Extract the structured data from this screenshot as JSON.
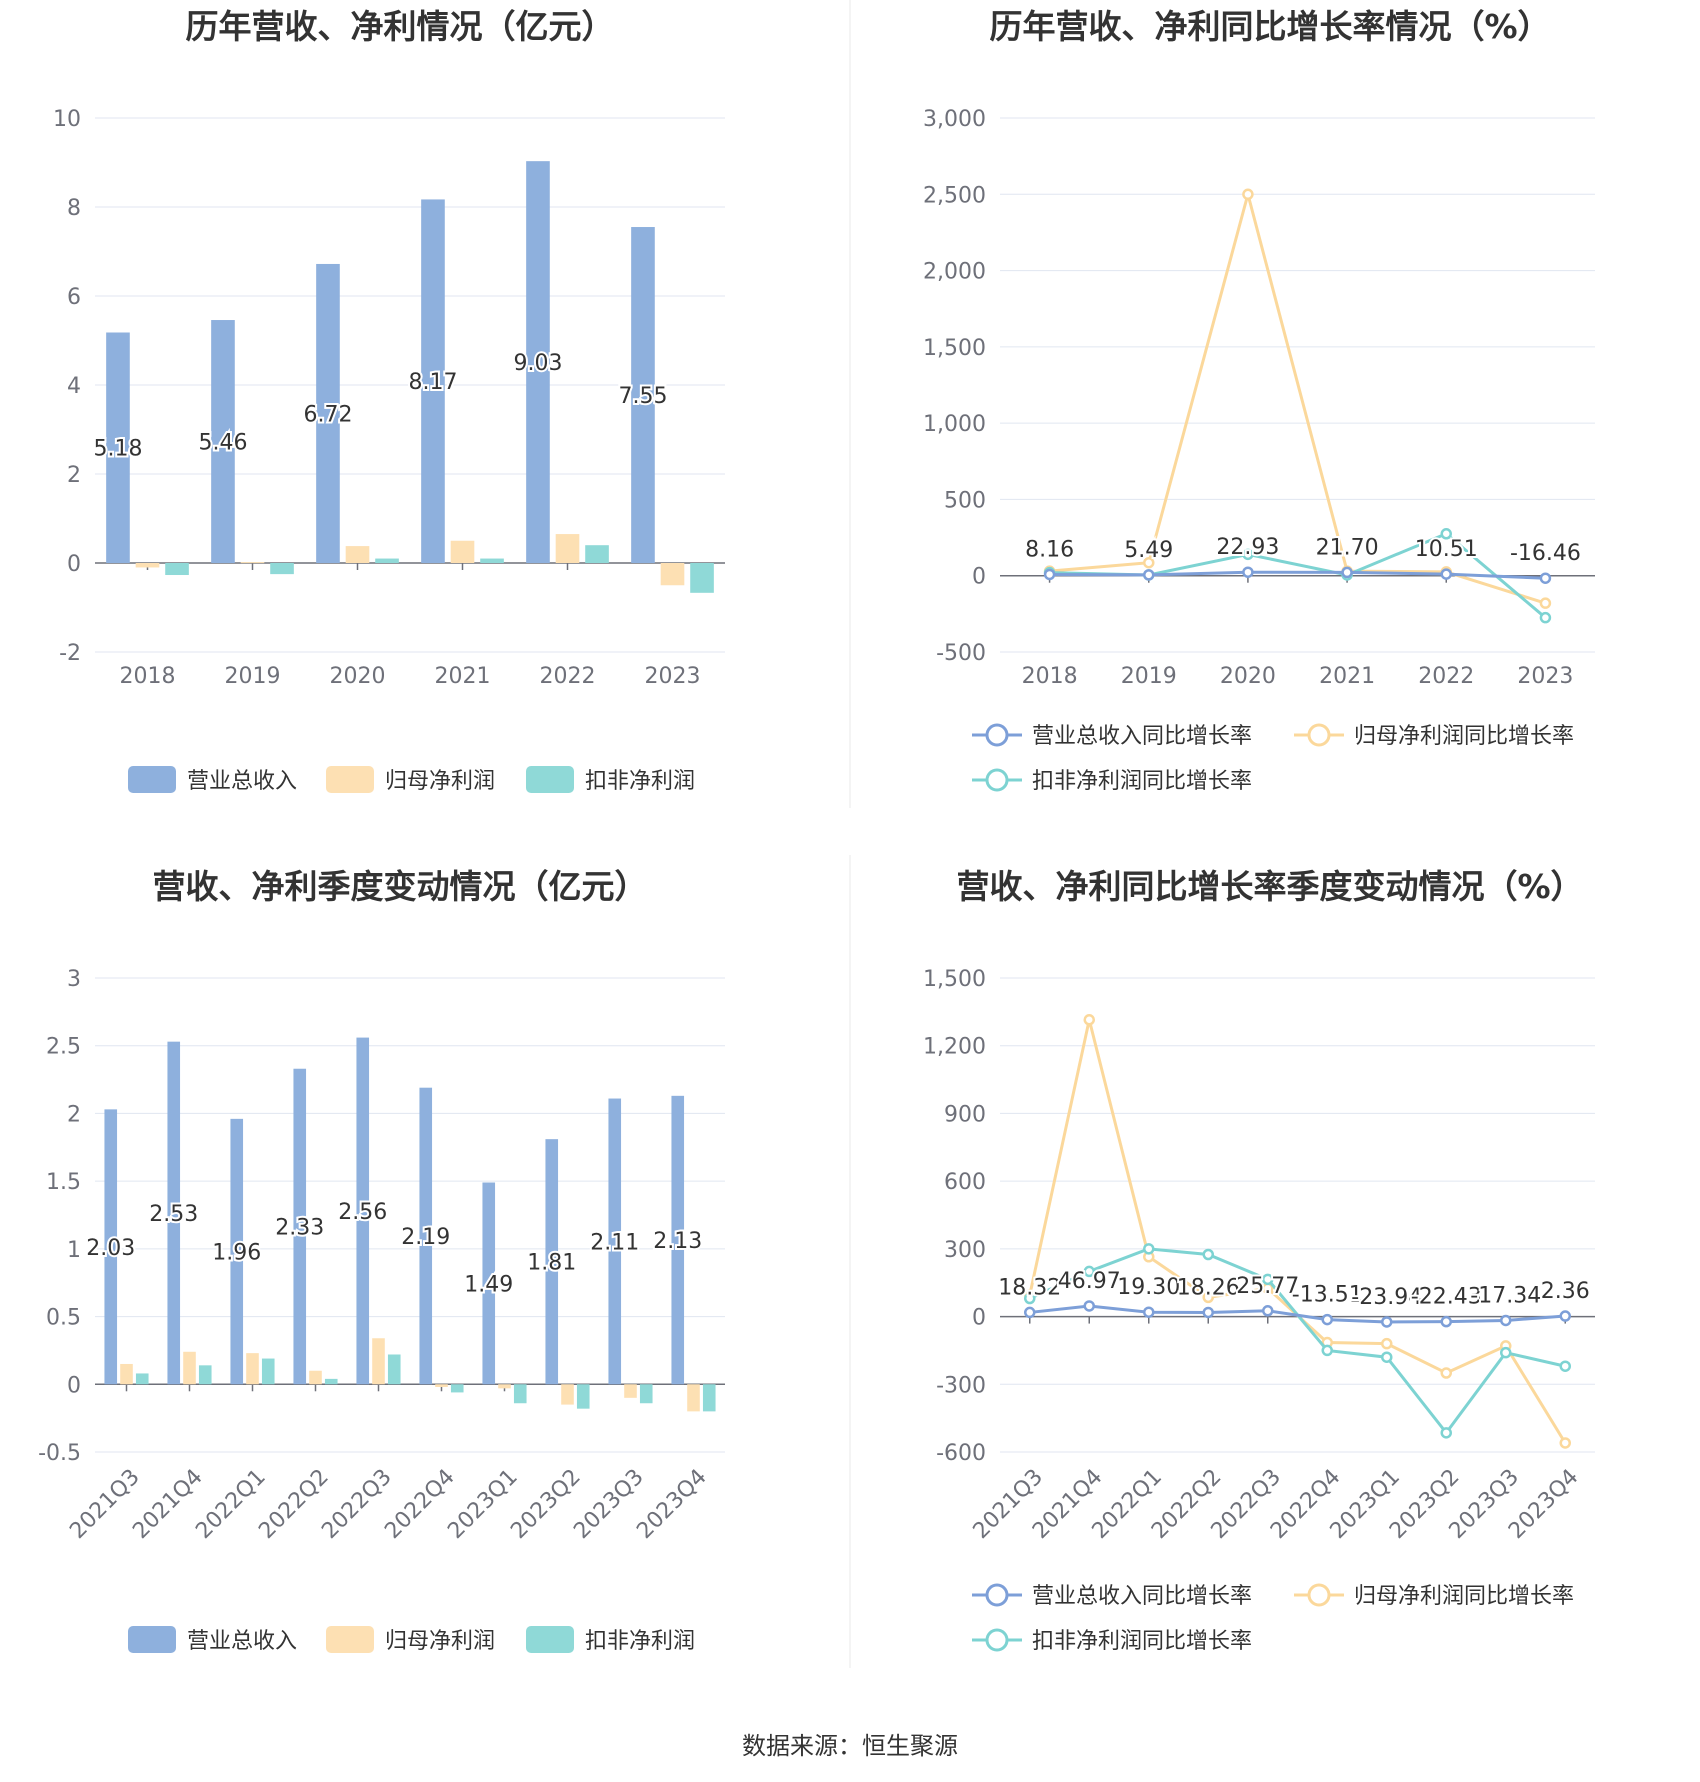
{
  "source_text": "数据来源：恒生聚源",
  "colors": {
    "revenue": "#8eb0dd",
    "net_profit": "#fde0b3",
    "deducted_profit": "#8fd9d7",
    "revenue_line": "#7d9fd8",
    "net_profit_line": "#fbd89b",
    "deducted_profit_line": "#7dd3d2",
    "grid": "#e0e6f1",
    "axis": "#6e7079"
  },
  "chart_data": [
    {
      "type": "bar",
      "title": "历年营收、净利情况（亿元）",
      "categories": [
        "2018",
        "2019",
        "2020",
        "2021",
        "2022",
        "2023"
      ],
      "ylim": [
        -2,
        10
      ],
      "yticks": [
        "-2",
        "0",
        "2",
        "4",
        "6",
        "8",
        "10"
      ],
      "series": [
        {
          "name": "营业总收入",
          "values": [
            5.18,
            5.46,
            6.72,
            8.17,
            9.03,
            7.55
          ],
          "labels": [
            "5.18",
            "5.46",
            "6.72",
            "8.17",
            "9.03",
            "7.55"
          ]
        },
        {
          "name": "归母净利润",
          "values": [
            -0.1,
            0.02,
            0.38,
            0.5,
            0.65,
            -0.5
          ]
        },
        {
          "name": "扣非净利润",
          "values": [
            -0.27,
            -0.25,
            0.1,
            0.1,
            0.4,
            -0.67
          ]
        }
      ],
      "legend": "bottom",
      "grid": true
    },
    {
      "type": "line",
      "title": "历年营收、净利同比增长率情况（%）",
      "categories": [
        "2018",
        "2019",
        "2020",
        "2021",
        "2022",
        "2023"
      ],
      "ylim": [
        -500,
        3000
      ],
      "yticks": [
        "-500",
        "0",
        "500",
        "1,000",
        "1,500",
        "2,000",
        "2,500",
        "3,000"
      ],
      "series": [
        {
          "name": "营业总收入同比增长率",
          "values": [
            8.16,
            5.49,
            22.93,
            21.7,
            10.51,
            -16.46
          ],
          "labels": [
            "8.16",
            "5.49",
            "22.93",
            "21.70",
            "10.51",
            "-16.46"
          ]
        },
        {
          "name": "归母净利润同比增长率",
          "values": [
            30,
            85,
            2500,
            30,
            25,
            -180
          ]
        },
        {
          "name": "扣非净利润同比增长率",
          "values": [
            20,
            5,
            140,
            5,
            275,
            -275
          ]
        }
      ],
      "legend": "bottom",
      "grid": true
    },
    {
      "type": "bar",
      "title": "营收、净利季度变动情况（亿元）",
      "categories": [
        "2021Q3",
        "2021Q4",
        "2022Q1",
        "2022Q2",
        "2022Q3",
        "2022Q4",
        "2023Q1",
        "2023Q2",
        "2023Q3",
        "2023Q4"
      ],
      "ylim": [
        -0.5,
        3
      ],
      "yticks": [
        "-0.5",
        "0",
        "0.5",
        "1",
        "1.5",
        "2",
        "2.5",
        "3"
      ],
      "series": [
        {
          "name": "营业总收入",
          "values": [
            2.03,
            2.53,
            1.96,
            2.33,
            2.56,
            2.19,
            1.49,
            1.81,
            2.11,
            2.13
          ],
          "labels": [
            "2.03",
            "2.53",
            "1.96",
            "2.33",
            "2.56",
            "2.19",
            "1.49",
            "1.81",
            "2.11",
            "2.13"
          ]
        },
        {
          "name": "归母净利润",
          "values": [
            0.15,
            0.24,
            0.23,
            0.1,
            0.34,
            -0.02,
            -0.03,
            -0.15,
            -0.1,
            -0.2
          ]
        },
        {
          "name": "扣非净利润",
          "values": [
            0.08,
            0.14,
            0.19,
            0.04,
            0.22,
            -0.06,
            -0.14,
            -0.18,
            -0.14,
            -0.2
          ]
        }
      ],
      "legend": "bottom",
      "grid": true
    },
    {
      "type": "line",
      "title": "营收、净利同比增长率季度变动情况（%）",
      "categories": [
        "2021Q3",
        "2021Q4",
        "2022Q1",
        "2022Q2",
        "2022Q3",
        "2022Q4",
        "2023Q1",
        "2023Q2",
        "2023Q3",
        "2023Q4"
      ],
      "ylim": [
        -600,
        1500
      ],
      "yticks": [
        "-600",
        "-300",
        "0",
        "300",
        "600",
        "900",
        "1,200",
        "1,500"
      ],
      "series": [
        {
          "name": "营业总收入同比增长率",
          "values": [
            18.32,
            46.97,
            19.3,
            18.26,
            25.77,
            -13.51,
            -23.94,
            -22.43,
            -17.34,
            2.36
          ],
          "labels": [
            "18.32",
            "46.97",
            "19.30",
            "18.26",
            "25.77",
            "-13.51",
            "-23.94",
            "-22.43",
            "-17.34",
            "2.36"
          ]
        },
        {
          "name": "归母净利润同比增长率",
          "values": [
            95,
            1315,
            265,
            85,
            125,
            -115,
            -120,
            -250,
            -130,
            -560
          ]
        },
        {
          "name": "扣非净利润同比增长率",
          "values": [
            80,
            200,
            300,
            275,
            165,
            -150,
            -180,
            -515,
            -160,
            -220
          ]
        }
      ],
      "legend": "bottom",
      "grid": true
    }
  ]
}
